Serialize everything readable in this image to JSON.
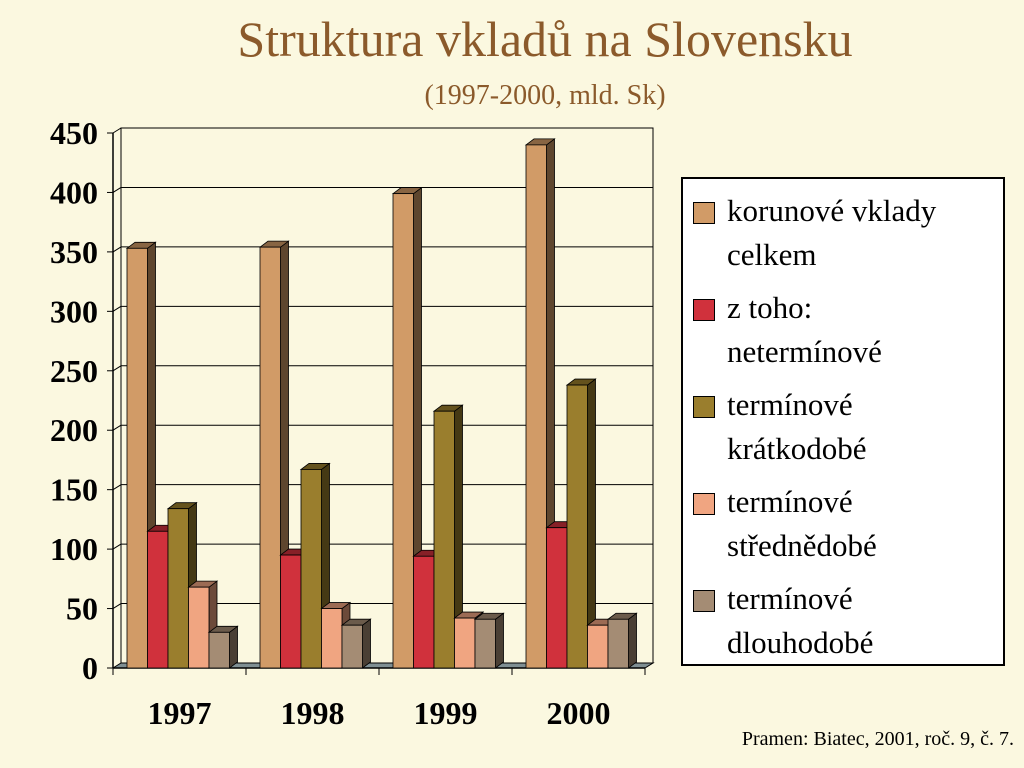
{
  "chart_data": {
    "type": "bar",
    "title": "Struktura vkladů na Slovensku",
    "subtitle": "(1997-2000, mld. Sk)",
    "categories": [
      "1997",
      "1998",
      "1999",
      "2000"
    ],
    "ylim": [
      0,
      450
    ],
    "yticks": [
      "0",
      "50",
      "100",
      "150",
      "200",
      "250",
      "300",
      "350",
      "400",
      "450"
    ],
    "grid": true,
    "legend_position": "right",
    "series": [
      {
        "name": "korunové vklady celkem",
        "line1": "korunové vklady",
        "line2": "celkem",
        "color": "#d19b67",
        "values": [
          353,
          354,
          399,
          440
        ]
      },
      {
        "name": "z toho: netermínové",
        "line1": "z toho:",
        "line2": "netermínové",
        "color": "#d0313c",
        "values": [
          115,
          95,
          94,
          118
        ]
      },
      {
        "name": "termínové krátkodobé",
        "line1": "termínové",
        "line2": "krátkodobé",
        "color": "#9a7e2d",
        "values": [
          134,
          167,
          216,
          238
        ]
      },
      {
        "name": "termínové střednědobé",
        "line1": "termínové",
        "line2": "střednědobé",
        "color": "#f0a581",
        "values": [
          68,
          50,
          42,
          36
        ]
      },
      {
        "name": "termínové dlouhodobé",
        "line1": "termínové",
        "line2": "dlouhodobé",
        "color": "#a48c74",
        "values": [
          30,
          36,
          41,
          41
        ]
      }
    ],
    "source": "Pramen: Biatec, 2001, roč. 9, č. 7."
  }
}
